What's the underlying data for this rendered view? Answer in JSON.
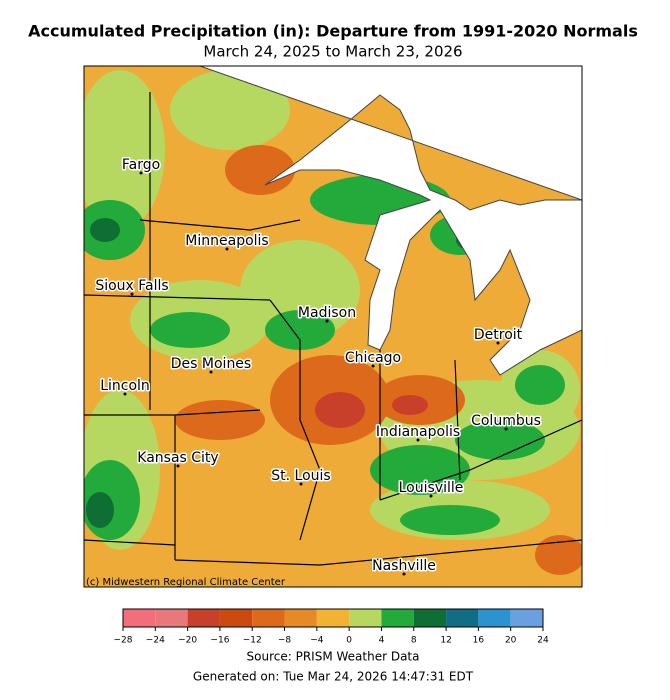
{
  "title": "Accumulated Precipitation (in): Departure from 1991-2020 Normals",
  "subtitle": "March 24, 2025 to March 23, 2026",
  "cities": [
    "Fargo",
    "Minneapolis",
    "Sioux Falls",
    "Madison",
    "Detroit",
    "Chicago",
    "Des Moines",
    "Lincoln",
    "Columbus",
    "Indianapolis",
    "Kansas City",
    "St. Louis",
    "Louisville",
    "Nashville"
  ],
  "credit": "(c) Midwestern Regional Climate Center",
  "colorbar": {
    "ticks": [
      {
        "value": -28,
        "label": "−28"
      },
      {
        "value": -24,
        "label": "−24"
      },
      {
        "value": -20,
        "label": "−20"
      },
      {
        "value": -16,
        "label": "−16"
      },
      {
        "value": -12,
        "label": "−12"
      },
      {
        "value": -8,
        "label": "−8"
      },
      {
        "value": -4,
        "label": "−4"
      },
      0,
      4,
      8,
      12,
      16,
      20,
      24
    ],
    "colors": [
      "#f46d7a",
      "#e8787a",
      "#c8402a",
      "#cc4a10",
      "#dd6a1a",
      "#e68a28",
      "#f2b232",
      "#b7d860",
      "#22aa3a",
      "#0f6e34",
      "#106d84",
      "#2b93cf",
      "#6a9fe0"
    ]
  },
  "source": "Source: PRISM Weather Data",
  "generated": "Generated on: Tue Mar 24, 2026 14:47:31 EDT"
}
